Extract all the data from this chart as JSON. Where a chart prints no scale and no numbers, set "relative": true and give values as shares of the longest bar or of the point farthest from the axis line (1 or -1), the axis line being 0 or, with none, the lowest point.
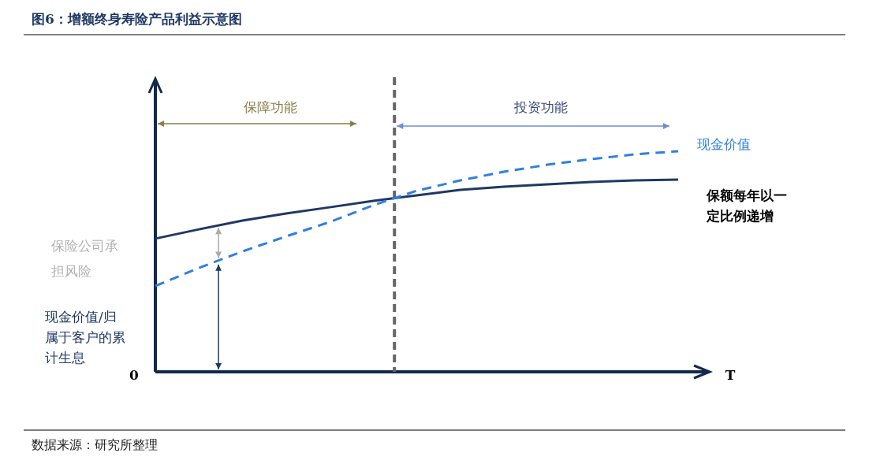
{
  "chart_data": {
    "type": "line",
    "relative": true,
    "title": "图6：增额终身寿险产品利益示意图",
    "xlabel": "T",
    "categories": [
      null,
      null,
      null,
      null,
      null,
      null,
      null,
      null,
      null,
      null,
      null,
      null,
      null
    ],
    "series": [
      {
        "name": "保额每年以一定比例递增",
        "color": "#1f3864",
        "line_style": "solid",
        "values": [
          0.604,
          0.646,
          0.686,
          0.718,
          0.746,
          0.775,
          0.8,
          0.825,
          0.839,
          0.85,
          0.861,
          0.868,
          0.871
        ]
      },
      {
        "name": "现金价值",
        "color": "#2f80e0",
        "line_style": "dashed",
        "values": [
          0.389,
          0.471,
          0.546,
          0.614,
          0.679,
          0.755,
          0.821,
          0.868,
          0.907,
          0.939,
          0.964,
          0.986,
          1
        ]
      }
    ],
    "annotations": [
      "保障功能",
      "投资功能",
      "保险公司承担风险",
      "现金价值/归属于客户的累计生息",
      "0",
      "数据来源：研究所整理"
    ],
    "marker": "none"
  }
}
